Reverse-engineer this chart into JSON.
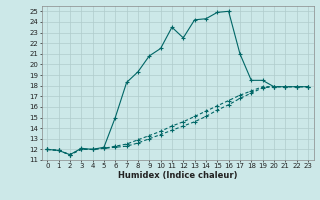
{
  "xlabel": "Humidex (Indice chaleur)",
  "bg_color": "#cce8e8",
  "grid_color": "#b0cccc",
  "line_color": "#006666",
  "xlim": [
    -0.5,
    23.5
  ],
  "ylim": [
    11,
    25.5
  ],
  "yticks": [
    11,
    12,
    13,
    14,
    15,
    16,
    17,
    18,
    19,
    20,
    21,
    22,
    23,
    24,
    25
  ],
  "xticks": [
    0,
    1,
    2,
    3,
    4,
    5,
    6,
    7,
    8,
    9,
    10,
    11,
    12,
    13,
    14,
    15,
    16,
    17,
    18,
    19,
    20,
    21,
    22,
    23
  ],
  "series1_x": [
    0,
    1,
    2,
    3,
    4,
    5,
    6,
    7,
    8,
    9,
    10,
    11,
    12,
    13,
    14,
    15,
    16,
    17,
    18,
    19,
    20,
    21,
    22,
    23
  ],
  "series1_y": [
    12.0,
    11.9,
    11.5,
    12.1,
    12.0,
    12.2,
    15.0,
    18.3,
    19.3,
    20.8,
    21.5,
    23.5,
    22.5,
    24.2,
    24.3,
    24.9,
    25.0,
    21.0,
    18.5,
    18.5,
    17.9,
    17.9,
    17.9,
    17.9
  ],
  "series2_x": [
    0,
    1,
    2,
    3,
    4,
    5,
    6,
    7,
    8,
    9,
    10,
    11,
    12,
    13,
    14,
    15,
    16,
    17,
    18,
    19,
    20,
    21,
    22,
    23
  ],
  "series2_y": [
    12.0,
    11.9,
    11.5,
    12.0,
    12.0,
    12.1,
    12.2,
    12.3,
    12.6,
    13.0,
    13.4,
    13.8,
    14.2,
    14.6,
    15.1,
    15.7,
    16.2,
    16.8,
    17.3,
    17.8,
    17.9,
    17.9,
    17.9,
    17.9
  ],
  "series3_x": [
    0,
    1,
    2,
    3,
    4,
    5,
    6,
    7,
    8,
    9,
    10,
    11,
    12,
    13,
    14,
    15,
    16,
    17,
    18,
    19,
    20,
    21,
    22,
    23
  ],
  "series3_y": [
    12.0,
    11.9,
    11.5,
    12.0,
    12.0,
    12.1,
    12.3,
    12.5,
    12.9,
    13.3,
    13.7,
    14.2,
    14.6,
    15.1,
    15.6,
    16.1,
    16.6,
    17.1,
    17.5,
    17.9,
    17.9,
    17.9,
    17.9,
    17.9
  ],
  "tick_fontsize": 5.0,
  "xlabel_fontsize": 6.0
}
